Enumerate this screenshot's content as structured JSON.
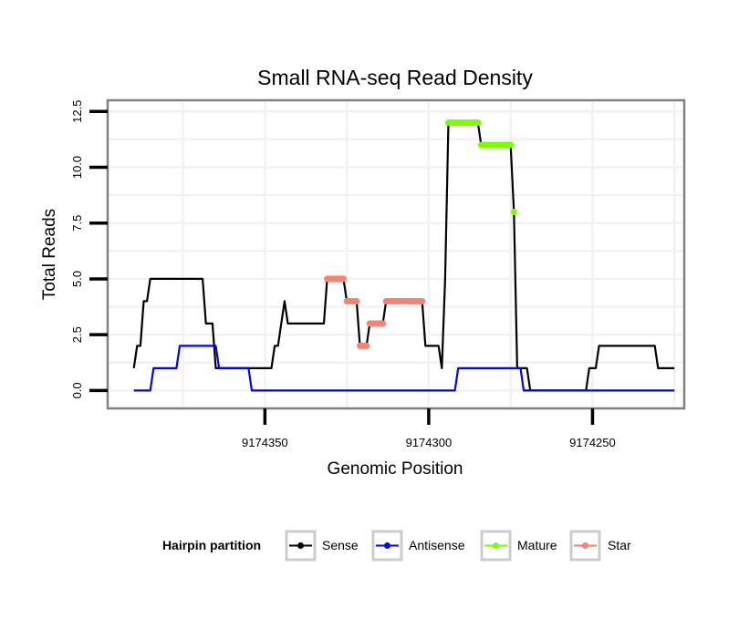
{
  "chart_data": {
    "type": "line",
    "title": "Small RNA-seq Read Density",
    "xlabel": "Genomic Position",
    "ylabel": "Total Reads",
    "xlim": [
      9174398,
      9174222
    ],
    "ylim": [
      -0.8,
      13.0
    ],
    "x_reversed": true,
    "grid": true,
    "x_ticks": [
      {
        "value": 9174350,
        "label": "9174350"
      },
      {
        "value": 9174300,
        "label": "9174300"
      },
      {
        "value": 9174250,
        "label": "9174250"
      }
    ],
    "y_ticks": [
      {
        "value": 0,
        "label": "0.0"
      },
      {
        "value": 2.5,
        "label": "2.5"
      },
      {
        "value": 5,
        "label": "5.0"
      },
      {
        "value": 7.5,
        "label": "7.5"
      },
      {
        "value": 10,
        "label": "10.0"
      },
      {
        "value": 12.5,
        "label": "12.5"
      }
    ],
    "legend": {
      "title": "Hairpin partition",
      "position": "bottom",
      "entries": [
        {
          "name": "Sense",
          "color": "#000000"
        },
        {
          "name": "Antisense",
          "color": "#0000ff"
        },
        {
          "name": "Mature",
          "color": "#7cfc00"
        },
        {
          "name": "Star",
          "color": "#fa8072"
        }
      ]
    },
    "series": [
      {
        "name": "Sense",
        "color": "#000000",
        "points": [
          [
            9174390,
            1
          ],
          [
            9174389,
            2
          ],
          [
            9174388,
            2
          ],
          [
            9174387,
            4
          ],
          [
            9174386,
            4
          ],
          [
            9174385,
            5
          ],
          [
            9174369,
            5
          ],
          [
            9174368,
            3
          ],
          [
            9174366,
            3
          ],
          [
            9174365,
            1
          ],
          [
            9174348,
            1
          ],
          [
            9174347,
            2
          ],
          [
            9174346,
            2
          ],
          [
            9174344,
            4
          ],
          [
            9174343,
            3
          ],
          [
            9174332,
            3
          ],
          [
            9174331,
            5
          ],
          [
            9174326,
            5
          ],
          [
            9174325,
            4
          ],
          [
            9174322,
            4
          ],
          [
            9174321,
            2
          ],
          [
            9174319,
            2
          ],
          [
            9174318,
            3
          ],
          [
            9174314,
            3
          ],
          [
            9174313,
            4
          ],
          [
            9174302,
            4
          ],
          [
            9174301,
            2
          ],
          [
            9174297,
            2
          ],
          [
            9174296,
            1
          ],
          [
            9174295,
            5
          ],
          [
            9174294,
            12
          ],
          [
            9174285,
            12
          ],
          [
            9174284,
            11
          ],
          [
            9174275,
            11
          ],
          [
            9174274,
            8
          ],
          [
            9174273,
            1
          ],
          [
            9174270,
            1
          ],
          [
            9174269,
            0
          ],
          [
            9174252,
            0
          ],
          [
            9174251,
            1
          ],
          [
            9174249,
            1
          ],
          [
            9174248,
            2
          ],
          [
            9174231,
            2
          ],
          [
            9174230,
            1
          ],
          [
            9174225,
            1
          ]
        ]
      },
      {
        "name": "Antisense",
        "color": "#0000ff",
        "points": [
          [
            9174390,
            0
          ],
          [
            9174385,
            0
          ],
          [
            9174384,
            1
          ],
          [
            9174377,
            1
          ],
          [
            9174376,
            2
          ],
          [
            9174365,
            2
          ],
          [
            9174364,
            1
          ],
          [
            9174355,
            1
          ],
          [
            9174354,
            0
          ],
          [
            9174292,
            0
          ],
          [
            9174291,
            1
          ],
          [
            9174272,
            1
          ],
          [
            9174271,
            0
          ],
          [
            9174225,
            0
          ]
        ]
      },
      {
        "name": "Mature",
        "color": "#7cfc00",
        "points": [
          [
            9174294,
            12
          ],
          [
            9174285,
            12
          ],
          [
            9174284,
            11
          ],
          [
            9174275,
            11
          ],
          [
            9174274,
            8
          ]
        ]
      },
      {
        "name": "Star",
        "color": "#fa8072",
        "points": [
          [
            9174331,
            5
          ],
          [
            9174326,
            5
          ],
          [
            9174325,
            4
          ],
          [
            9174322,
            4
          ],
          [
            9174321,
            2
          ],
          [
            9174319,
            2
          ],
          [
            9174318,
            3
          ],
          [
            9174314,
            3
          ],
          [
            9174313,
            4
          ],
          [
            9174302,
            4
          ]
        ]
      }
    ]
  }
}
